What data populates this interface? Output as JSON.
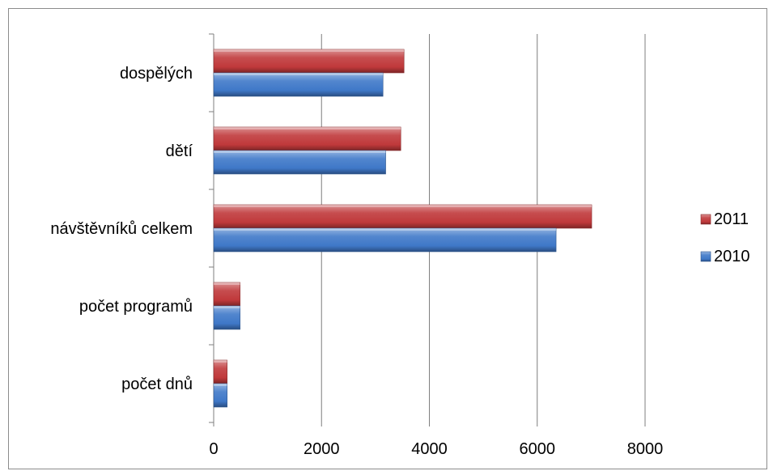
{
  "chart_data": {
    "type": "bar",
    "orientation": "horizontal",
    "categories": [
      "dospělých",
      "dětí",
      "návštěvníků celkem",
      "počet programů",
      "počet dnů"
    ],
    "series": [
      {
        "name": "2011",
        "values": [
          3530,
          3470,
          7010,
          490,
          250
        ],
        "color": "#c0393b"
      },
      {
        "name": "2010",
        "values": [
          3140,
          3190,
          6350,
          490,
          250
        ],
        "color": "#3f78c8"
      }
    ],
    "xlim": [
      0,
      8000
    ],
    "xticks": [
      "0",
      "2000",
      "4000",
      "6000",
      "8000"
    ],
    "grid": "vertical",
    "legend_position": "right",
    "title": "",
    "xlabel": "",
    "ylabel": ""
  }
}
